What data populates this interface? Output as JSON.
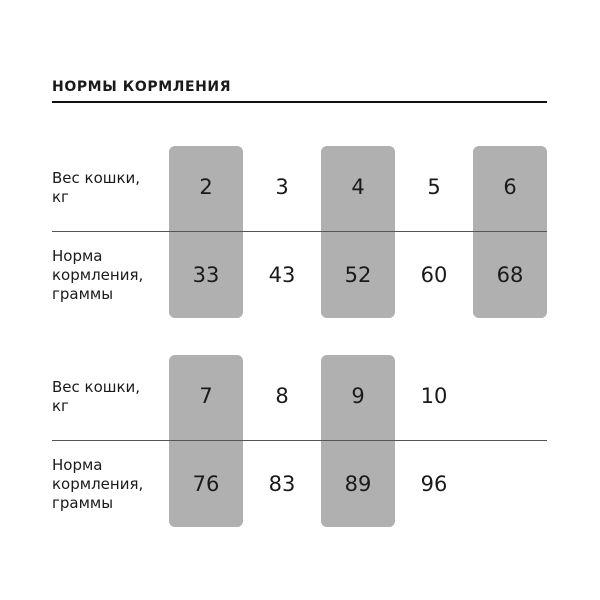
{
  "title": "НОРМЫ КОРМЛЕНИЯ",
  "row_labels": {
    "weight": "Вес кошки,\nкг",
    "norm": "Норма\nкормления,\nграммы"
  },
  "highlight_color": "#b0b0b0",
  "tables": [
    {
      "weights": [
        "2",
        "3",
        "4",
        "5",
        "6"
      ],
      "norms": [
        "33",
        "43",
        "52",
        "60",
        "68"
      ],
      "highlighted_columns": [
        0,
        2,
        4
      ]
    },
    {
      "weights": [
        "7",
        "8",
        "9",
        "10"
      ],
      "norms": [
        "76",
        "83",
        "89",
        "96"
      ],
      "highlighted_columns": [
        0,
        2
      ]
    }
  ]
}
